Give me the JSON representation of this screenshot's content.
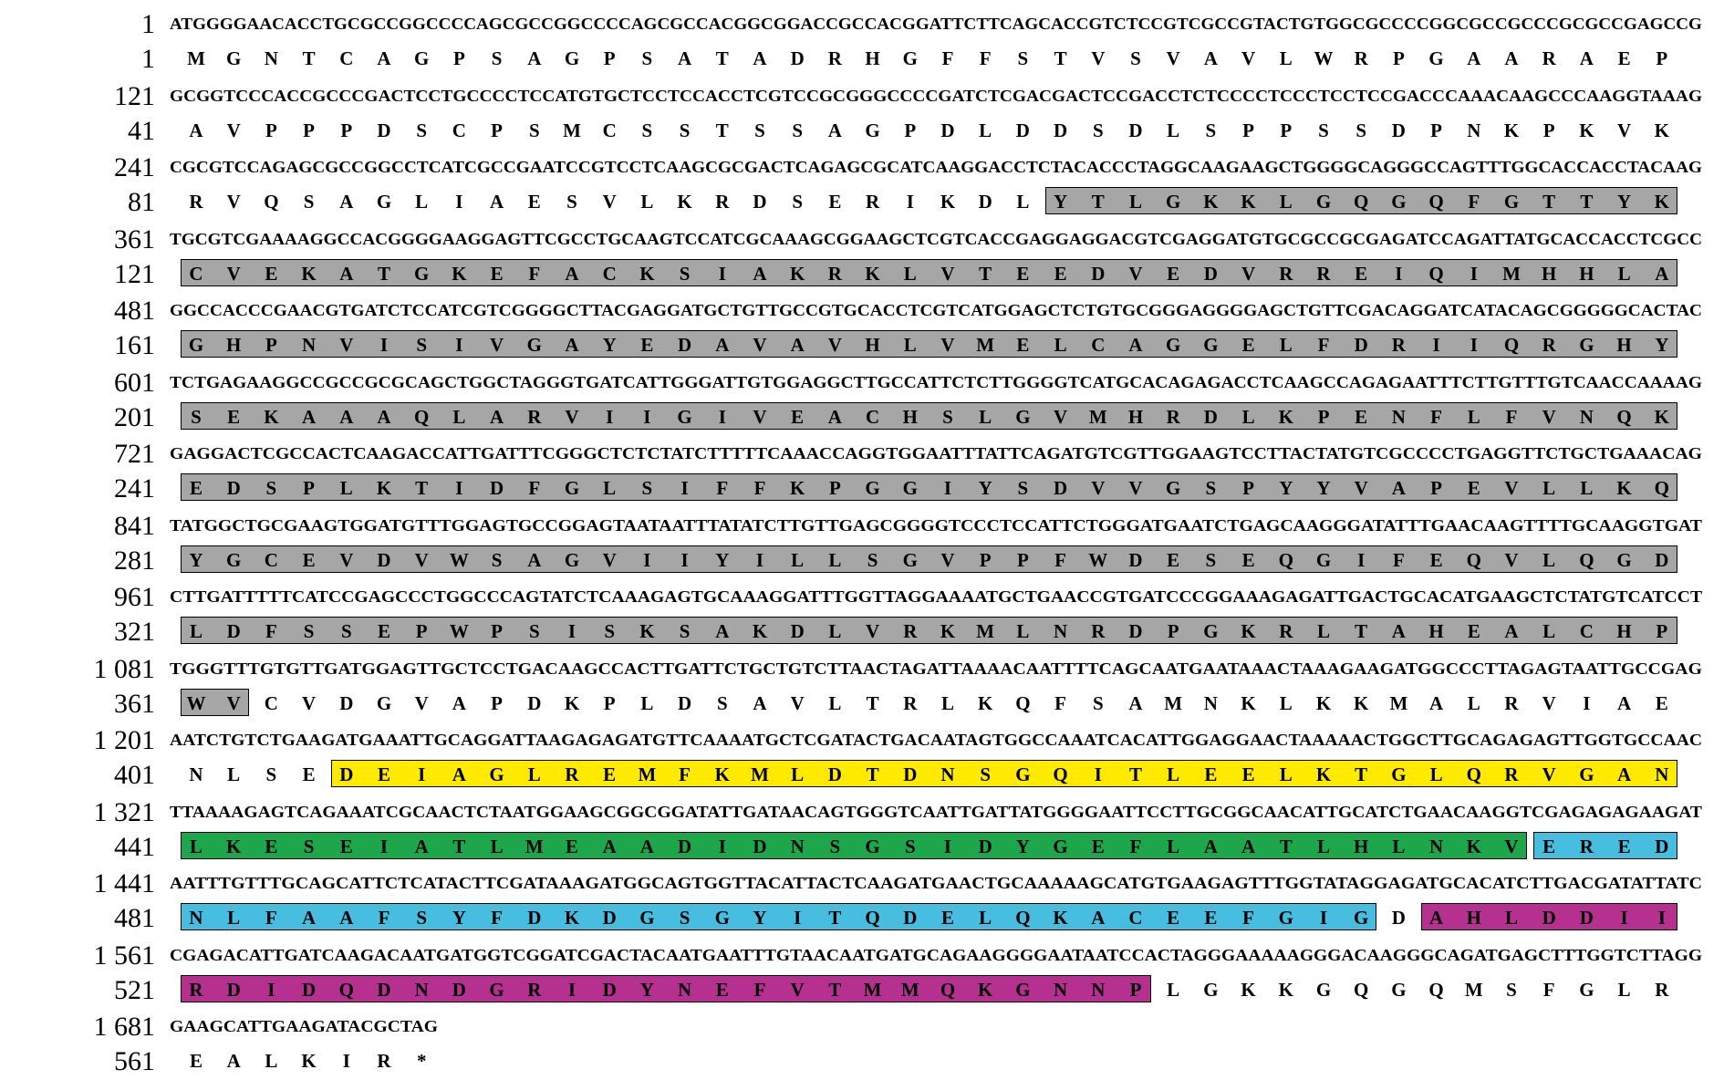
{
  "sequence_rows": [
    {
      "nt_start": "1",
      "dna": "ATGGGGAACACCTGCGCCGGCCCCAGCGCCGGCCCCAGCGCCACGGCGGACCGCCACGGATTCTTCAGCACCGTCTCCGTCGCCGTACTGTGGCGCCCCGGCGCCGCCCGCGCCGAGCCG",
      "aa_start": "1",
      "aa": [
        "M",
        "G",
        "N",
        "T",
        "C",
        "A",
        "G",
        "P",
        "S",
        "A",
        "G",
        "P",
        "S",
        "A",
        "T",
        "A",
        "D",
        "R",
        "H",
        "G",
        "F",
        "F",
        "S",
        "T",
        "V",
        "S",
        "V",
        "A",
        "V",
        "L",
        "W",
        "R",
        "P",
        "G",
        "A",
        "A",
        "R",
        "A",
        "E",
        "P"
      ],
      "highlights": []
    },
    {
      "nt_start": "121",
      "dna": "GCGGTCCCACCGCCCGACTCCTGCCCCTCCATGTGCTCCTCCACCTCGTCCGCGGGCCCCGATCTCGACGACTCCGACCTCTCCCCTCCCTCCTCCGACCCAAACAAGCCCAAGGTAAAG",
      "aa_start": "41",
      "aa": [
        "A",
        "V",
        "P",
        "P",
        "P",
        "D",
        "S",
        "C",
        "P",
        "S",
        "M",
        "C",
        "S",
        "S",
        "T",
        "S",
        "S",
        "A",
        "G",
        "P",
        "D",
        "L",
        "D",
        "D",
        "S",
        "D",
        "L",
        "S",
        "P",
        "P",
        "S",
        "S",
        "D",
        "P",
        "N",
        "K",
        "P",
        "K",
        "V",
        "K"
      ],
      "highlights": []
    },
    {
      "nt_start": "241",
      "dna": "CGCGTCCAGAGCGCCGGCCTCATCGCCGAATCCGTCCTCAAGCGCGACTCAGAGCGCATCAAGGACCTCTACACCCTAGGCAAGAAGCTGGGGCAGGGCCAGTTTGGCACCACCTACAAG",
      "aa_start": "81",
      "aa": [
        "R",
        "V",
        "Q",
        "S",
        "A",
        "G",
        "L",
        "I",
        "A",
        "E",
        "S",
        "V",
        "L",
        "K",
        "R",
        "D",
        "S",
        "E",
        "R",
        "I",
        "K",
        "D",
        "L",
        "Y",
        "T",
        "L",
        "G",
        "K",
        "K",
        "L",
        "G",
        "Q",
        "G",
        "Q",
        "F",
        "G",
        "T",
        "T",
        "Y",
        "K"
      ],
      "highlights": [
        {
          "from": 23,
          "to": 39,
          "color": "#a6a6a6",
          "domain": "kinase"
        }
      ]
    },
    {
      "nt_start": "361",
      "dna": "TGCGTCGAAAAGGCCACGGGGAAGGAGTTCGCCTGCAAGTCCATCGCAAAGCGGAAGCTCGTCACCGAGGAGGACGTCGAGGATGTGCGCCGCGAGATCCAGATTATGCACCACCTCGCC",
      "aa_start": "121",
      "aa": [
        "C",
        "V",
        "E",
        "K",
        "A",
        "T",
        "G",
        "K",
        "E",
        "F",
        "A",
        "C",
        "K",
        "S",
        "I",
        "A",
        "K",
        "R",
        "K",
        "L",
        "V",
        "T",
        "E",
        "E",
        "D",
        "V",
        "E",
        "D",
        "V",
        "R",
        "R",
        "E",
        "I",
        "Q",
        "I",
        "M",
        "H",
        "H",
        "L",
        "A"
      ],
      "highlights": [
        {
          "from": 0,
          "to": 39,
          "color": "#a6a6a6",
          "domain": "kinase"
        }
      ]
    },
    {
      "nt_start": "481",
      "dna": "GGCCACCCGAACGTGATCTCCATCGTCGGGGCTTACGAGGATGCTGTTGCCGTGCACCTCGTCATGGAGCTCTGTGCGGGAGGGGAGCTGTTCGACAGGATCATACAGCGGGGGCACTAC",
      "aa_start": "161",
      "aa": [
        "G",
        "H",
        "P",
        "N",
        "V",
        "I",
        "S",
        "I",
        "V",
        "G",
        "A",
        "Y",
        "E",
        "D",
        "A",
        "V",
        "A",
        "V",
        "H",
        "L",
        "V",
        "M",
        "E",
        "L",
        "C",
        "A",
        "G",
        "G",
        "E",
        "L",
        "F",
        "D",
        "R",
        "I",
        "I",
        "Q",
        "R",
        "G",
        "H",
        "Y"
      ],
      "highlights": [
        {
          "from": 0,
          "to": 39,
          "color": "#a6a6a6",
          "domain": "kinase"
        }
      ]
    },
    {
      "nt_start": "601",
      "dna": "TCTGAGAAGGCCGCCGCGCAGCTGGCTAGGGTGATCATTGGGATTGTGGAGGCTTGCCATTCTCTTGGGGTCATGCACAGAGACCTCAAGCCAGAGAATTTCTTGTTTGTCAACCAAAAG",
      "aa_start": "201",
      "aa": [
        "S",
        "E",
        "K",
        "A",
        "A",
        "A",
        "Q",
        "L",
        "A",
        "R",
        "V",
        "I",
        "I",
        "G",
        "I",
        "V",
        "E",
        "A",
        "C",
        "H",
        "S",
        "L",
        "G",
        "V",
        "M",
        "H",
        "R",
        "D",
        "L",
        "K",
        "P",
        "E",
        "N",
        "F",
        "L",
        "F",
        "V",
        "N",
        "Q",
        "K"
      ],
      "highlights": [
        {
          "from": 0,
          "to": 39,
          "color": "#a6a6a6",
          "domain": "kinase"
        }
      ]
    },
    {
      "nt_start": "721",
      "dna": "GAGGACTCGCCACTCAAGACCATTGATTTCGGGCTCTCTATCTTTTTCAAACCAGGTGGAATTTATTCAGATGTCGTTGGAAGTCCTTACTATGTCGCCCCTGAGGTTCTGCTGAAACAG",
      "aa_start": "241",
      "aa": [
        "E",
        "D",
        "S",
        "P",
        "L",
        "K",
        "T",
        "I",
        "D",
        "F",
        "G",
        "L",
        "S",
        "I",
        "F",
        "F",
        "K",
        "P",
        "G",
        "G",
        "I",
        "Y",
        "S",
        "D",
        "V",
        "V",
        "G",
        "S",
        "P",
        "Y",
        "Y",
        "V",
        "A",
        "P",
        "E",
        "V",
        "L",
        "L",
        "K",
        "Q"
      ],
      "highlights": [
        {
          "from": 0,
          "to": 39,
          "color": "#a6a6a6",
          "domain": "kinase"
        }
      ]
    },
    {
      "nt_start": "841",
      "dna": "TATGGCTGCGAAGTGGATGTTTGGAGTGCCGGAGTAATAATTTATATCTTGTTGAGCGGGGTCCCTCCATTCTGGGATGAATCTGAGCAAGGGATATTTGAACAAGTTTTGCAAGGTGAT",
      "aa_start": "281",
      "aa": [
        "Y",
        "G",
        "C",
        "E",
        "V",
        "D",
        "V",
        "W",
        "S",
        "A",
        "G",
        "V",
        "I",
        "I",
        "Y",
        "I",
        "L",
        "L",
        "S",
        "G",
        "V",
        "P",
        "P",
        "F",
        "W",
        "D",
        "E",
        "S",
        "E",
        "Q",
        "G",
        "I",
        "F",
        "E",
        "Q",
        "V",
        "L",
        "Q",
        "G",
        "D"
      ],
      "highlights": [
        {
          "from": 0,
          "to": 39,
          "color": "#a6a6a6",
          "domain": "kinase"
        }
      ]
    },
    {
      "nt_start": "961",
      "dna": "CTTGATTTTTCATCCGAGCCCTGGCCCAGTATCTCAAAGAGTGCAAAGGATTTGGTTAGGAAAATGCTGAACCGTGATCCCGGAAAGAGATTGACTGCACATGAAGCTCTATGTCATCCT",
      "aa_start": "321",
      "aa": [
        "L",
        "D",
        "F",
        "S",
        "S",
        "E",
        "P",
        "W",
        "P",
        "S",
        "I",
        "S",
        "K",
        "S",
        "A",
        "K",
        "D",
        "L",
        "V",
        "R",
        "K",
        "M",
        "L",
        "N",
        "R",
        "D",
        "P",
        "G",
        "K",
        "R",
        "L",
        "T",
        "A",
        "H",
        "E",
        "A",
        "L",
        "C",
        "H",
        "P"
      ],
      "highlights": [
        {
          "from": 0,
          "to": 39,
          "color": "#a6a6a6",
          "domain": "kinase"
        }
      ]
    },
    {
      "nt_start": "1 081",
      "dna": "TGGGTTTGTGTTGATGGAGTTGCTCCTGACAAGCCACTTGATTCTGCTGTCTTAACTAGATTAAAACAATTTTCAGCAATGAATAAACTAAAGAAGATGGCCCTTAGAGTAATTGCCGAG",
      "aa_start": "361",
      "aa": [
        "W",
        "V",
        "C",
        "V",
        "D",
        "G",
        "V",
        "A",
        "P",
        "D",
        "K",
        "P",
        "L",
        "D",
        "S",
        "A",
        "V",
        "L",
        "T",
        "R",
        "L",
        "K",
        "Q",
        "F",
        "S",
        "A",
        "M",
        "N",
        "K",
        "L",
        "K",
        "K",
        "M",
        "A",
        "L",
        "R",
        "V",
        "I",
        "A",
        "E"
      ],
      "highlights": [
        {
          "from": 0,
          "to": 1,
          "color": "#a6a6a6",
          "domain": "kinase"
        }
      ]
    },
    {
      "nt_start": "1 201",
      "dna": "AATCTGTCTGAAGATGAAATTGCAGGATTAAGAGAGATGTTCAAAATGCTCGATACTGACAATAGTGGCCAAATCACATTGGAGGAACTAAAAACTGGCTTGCAGAGAGTTGGTGCCAAC",
      "aa_start": "401",
      "aa": [
        "N",
        "L",
        "S",
        "E",
        "D",
        "E",
        "I",
        "A",
        "G",
        "L",
        "R",
        "E",
        "M",
        "F",
        "K",
        "M",
        "L",
        "D",
        "T",
        "D",
        "N",
        "S",
        "G",
        "Q",
        "I",
        "T",
        "L",
        "E",
        "E",
        "L",
        "K",
        "T",
        "G",
        "L",
        "Q",
        "R",
        "V",
        "G",
        "A",
        "N"
      ],
      "highlights": [
        {
          "from": 4,
          "to": 39,
          "color": "#ffea00",
          "domain": "EF-hand-1"
        }
      ]
    },
    {
      "nt_start": "1 321",
      "dna": "TTAAAAGAGTCAGAAATCGCAACTCTAATGGAAGCGGCGGATATTGATAACAGTGGGTCAATTGATTATGGGGAATTCCTTGCGGCAACATTGCATCTGAACAAGGTCGAGAGAGAAGAT",
      "aa_start": "441",
      "aa": [
        "L",
        "K",
        "E",
        "S",
        "E",
        "I",
        "A",
        "T",
        "L",
        "M",
        "E",
        "A",
        "A",
        "D",
        "I",
        "D",
        "N",
        "S",
        "G",
        "S",
        "I",
        "D",
        "Y",
        "G",
        "E",
        "F",
        "L",
        "A",
        "A",
        "T",
        "L",
        "H",
        "L",
        "N",
        "K",
        "V",
        "E",
        "R",
        "E",
        "D"
      ],
      "highlights": [
        {
          "from": 0,
          "to": 35,
          "color": "#1da64a",
          "domain": "EF-hand-2"
        },
        {
          "from": 36,
          "to": 39,
          "color": "#47bde0",
          "domain": "EF-hand-3"
        }
      ]
    },
    {
      "nt_start": "1 441",
      "dna": "AATTTGTTTGCAGCATTCTCATACTTCGATAAAGATGGCAGTGGTTACATTACTCAAGATGAACTGCAAAAAGCATGTGAAGAGTTTGGTATAGGAGATGCACATCTTGACGATATTATC",
      "aa_start": "481",
      "aa": [
        "N",
        "L",
        "F",
        "A",
        "A",
        "F",
        "S",
        "Y",
        "F",
        "D",
        "K",
        "D",
        "G",
        "S",
        "G",
        "Y",
        "I",
        "T",
        "Q",
        "D",
        "E",
        "L",
        "Q",
        "K",
        "A",
        "C",
        "E",
        "E",
        "F",
        "G",
        "I",
        "G",
        "D",
        "A",
        "H",
        "L",
        "D",
        "D",
        "I",
        "I"
      ],
      "highlights": [
        {
          "from": 0,
          "to": 31,
          "color": "#47bde0",
          "domain": "EF-hand-3"
        },
        {
          "from": 33,
          "to": 39,
          "color": "#b5308f",
          "domain": "EF-hand-4"
        }
      ]
    },
    {
      "nt_start": "1 561",
      "dna": "CGAGACATTGATCAAGACAATGATGGTCGGATCGACTACAATGAATTTGTAACAATGATGCAGAAGGGGAATAATCCACTAGGGAAAAAGGGACAAGGGCAGATGAGCTTTGGTCTTAGG",
      "aa_start": "521",
      "aa": [
        "R",
        "D",
        "I",
        "D",
        "Q",
        "D",
        "N",
        "D",
        "G",
        "R",
        "I",
        "D",
        "Y",
        "N",
        "E",
        "F",
        "V",
        "T",
        "M",
        "M",
        "Q",
        "K",
        "G",
        "N",
        "N",
        "P",
        "L",
        "G",
        "K",
        "K",
        "G",
        "Q",
        "G",
        "Q",
        "M",
        "S",
        "F",
        "G",
        "L",
        "R"
      ],
      "highlights": [
        {
          "from": 0,
          "to": 25,
          "color": "#b5308f",
          "domain": "EF-hand-4"
        }
      ]
    },
    {
      "nt_start": "1 681",
      "dna": "GAAGCATTGAAGATACGCTAG",
      "aa_start": "561",
      "aa": [
        "E",
        "A",
        "L",
        "K",
        "I",
        "R",
        "*"
      ],
      "highlights": []
    }
  ]
}
